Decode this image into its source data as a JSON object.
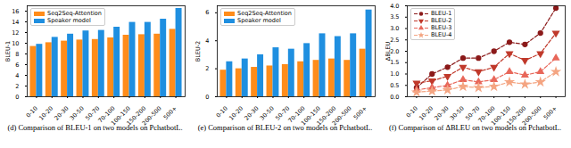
{
  "chart_data": [
    {
      "type": "bar",
      "title": "(d) Comparison of BLEU-1 on two models on PchatbotL.",
      "y_label": "BLEU-1",
      "categories": [
        "0-10",
        "10-20",
        "20-30",
        "30-50",
        "50-70",
        "70-100",
        "100-150",
        "150-200",
        "200-500",
        "500+"
      ],
      "series": [
        {
          "name": "Seq2Seq-Attention",
          "color": "#ff8c1a",
          "values": [
            9.4,
            10.1,
            10.4,
            10.6,
            10.7,
            11.0,
            11.5,
            11.6,
            11.7,
            12.6
          ]
        },
        {
          "name": "Speaker model",
          "color": "#1f8fe0",
          "values": [
            9.8,
            11.1,
            11.7,
            12.3,
            12.4,
            13.0,
            13.9,
            13.9,
            14.5,
            16.5
          ]
        }
      ],
      "ylim": [
        0,
        17
      ],
      "yticks": [
        0,
        2,
        4,
        6,
        8,
        10,
        12,
        14,
        16
      ],
      "grid": false,
      "legend": "top-left"
    },
    {
      "type": "bar",
      "title": "(e) Comparison of BLEU-2 on two models on PchatbotL.",
      "y_label": "BLEU-2",
      "categories": [
        "0-10",
        "10-20",
        "20-30",
        "30-50",
        "50-70",
        "70-100",
        "100-150",
        "150-200",
        "200-500",
        "500+"
      ],
      "series": [
        {
          "name": "Seq2Seq-Attention",
          "color": "#ff8c1a",
          "values": [
            1.9,
            2.0,
            2.1,
            2.2,
            2.3,
            2.5,
            2.6,
            2.7,
            2.6,
            3.4
          ]
        },
        {
          "name": "Speaker model",
          "color": "#1f8fe0",
          "values": [
            2.5,
            2.7,
            3.0,
            3.5,
            3.4,
            3.8,
            4.5,
            4.3,
            4.5,
            6.2
          ]
        }
      ],
      "ylim": [
        0,
        6.5
      ],
      "yticks": [
        0,
        2,
        4,
        6
      ],
      "grid": false,
      "legend": "top-left"
    },
    {
      "type": "line",
      "title": "(f) Comparison of ΔBLEU on two models on PchatbotL.",
      "y_label": "ΔBLEU",
      "categories": [
        "0-10",
        "10-20",
        "20-30",
        "30-50",
        "50-70",
        "70-100",
        "100-150",
        "150-200",
        "200-500",
        "500+"
      ],
      "series": [
        {
          "name": "BLEU-1",
          "color": "#8b1a1a",
          "marker": "circle",
          "line_style": "dashed",
          "values": [
            0.4,
            1.0,
            1.3,
            1.7,
            1.7,
            2.0,
            2.4,
            2.3,
            2.8,
            3.9
          ]
        },
        {
          "name": "BLEU-2",
          "color": "#c0392b",
          "marker": "triangle-down",
          "line_style": "dashed",
          "values": [
            0.6,
            0.7,
            0.9,
            1.3,
            1.1,
            1.3,
            1.9,
            1.6,
            1.9,
            2.8
          ]
        },
        {
          "name": "BLEU-3",
          "color": "#e8675a",
          "marker": "triangle",
          "line_style": "dashed",
          "values": [
            0.3,
            0.4,
            0.5,
            0.75,
            0.65,
            0.75,
            1.1,
            0.95,
            1.1,
            1.7
          ]
        },
        {
          "name": "BLEU-4",
          "color": "#f4a582",
          "marker": "star",
          "line_style": "dashed",
          "values": [
            0.2,
            0.25,
            0.3,
            0.45,
            0.4,
            0.45,
            0.65,
            0.55,
            0.65,
            1.1
          ]
        }
      ],
      "ylim": [
        0,
        4
      ],
      "yticks": [
        {
          "value": 0,
          "label": "0.0"
        },
        {
          "value": 0.5,
          "label": "0.5"
        },
        {
          "value": 1,
          "label": "1.0"
        },
        {
          "value": 1.5,
          "label": "1.5"
        },
        {
          "value": 2,
          "label": "2.0"
        },
        {
          "value": 2.5,
          "label": "2.5"
        },
        {
          "value": 3,
          "label": "3.0"
        },
        {
          "value": 3.5,
          "label": "3.5"
        },
        {
          "value": 4,
          "label": "4.0"
        }
      ],
      "grid": false,
      "legend": "top-left"
    }
  ]
}
